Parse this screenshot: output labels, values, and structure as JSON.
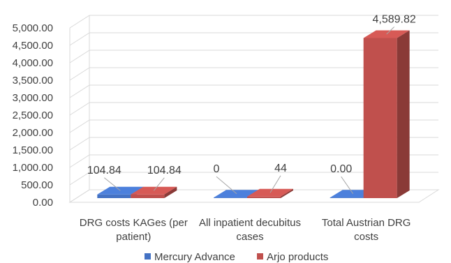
{
  "chart_data": {
    "type": "bar",
    "categories": [
      "DRG costs KAGes (per patient)",
      "All inpatient decubitus cases",
      "Total Austrian DRG costs"
    ],
    "category_lines": [
      [
        "DRG costs KAGes (per",
        "patient)"
      ],
      [
        "All inpatient decubitus",
        "cases"
      ],
      [
        "Total Austrian DRG",
        "costs"
      ]
    ],
    "series": [
      {
        "name": "Mercury Advance",
        "values": [
          104.84,
          0,
          0
        ],
        "labels": [
          "104.84",
          "0",
          "0.00"
        ],
        "color": "#4472C4"
      },
      {
        "name": "Arjo products",
        "values": [
          104.84,
          44,
          4589.82
        ],
        "labels": [
          "104.84",
          "44",
          "4,589.82"
        ],
        "color": "#C0504D"
      }
    ],
    "ylim": [
      0,
      5000
    ],
    "yticks": [
      "0.00",
      "500.00",
      "1,000.00",
      "1,500.00",
      "2,000.00",
      "2,500.00",
      "3,000.00",
      "3,500.00",
      "4,000.00",
      "4,500.00",
      "5,000.00"
    ],
    "grid": true,
    "legend_position": "bottom",
    "style": "3d-clustered-column"
  }
}
